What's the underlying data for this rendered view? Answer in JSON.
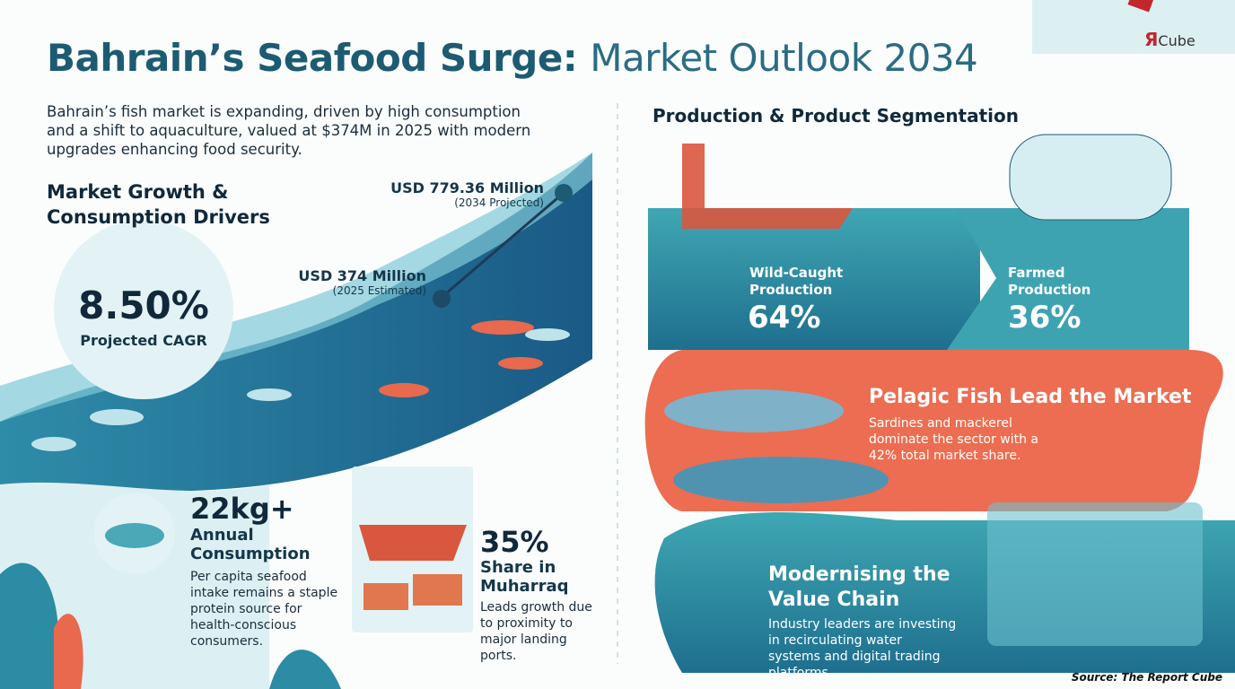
{
  "header": {
    "title_bold": "Bahrain’s Seafood Surge:",
    "title_light": "Market Outlook 2034",
    "logo_mark": "Я",
    "logo_text": "Cube"
  },
  "intro": "Bahrain’s fish market is expanding, driven by high consumption and a shift to aquaculture, valued at $374M in 2025 with modern upgrades enhancing food security.",
  "growth": {
    "heading": "Market Growth & Consumption Drivers",
    "cagr": {
      "value": "8.50%",
      "label": "Projected CAGR"
    },
    "projection_2034": {
      "value": "USD 779.36 Million",
      "note": "(2034 Projected)"
    },
    "estimate_2025": {
      "value": "USD 374 Million",
      "note": "(2025 Estimated)"
    }
  },
  "consumption": {
    "value": "22kg+",
    "label": "Annual Consumption",
    "description": "Per capita seafood intake remains a staple protein source for health-conscious consumers."
  },
  "muharraq": {
    "value": "35%",
    "label": "Share in Muharraq",
    "description": "Leads growth due to proximity to major landing ports."
  },
  "segmentation": {
    "heading": "Production & Product Segmentation",
    "wild": {
      "label": "Wild-Caught Production",
      "value": "64%"
    },
    "farmed": {
      "label": "Farmed Production",
      "value": "36%"
    }
  },
  "pelagic": {
    "heading": "Pelagic Fish Lead the Market",
    "description": "Sardines and mackerel dominate the sector with a 42% total market share."
  },
  "modernising": {
    "heading": "Modernising the Value Chain",
    "description": "Industry leaders are investing in recirculating water systems and digital trading platforms."
  },
  "source": "Source: The Report Cube"
}
